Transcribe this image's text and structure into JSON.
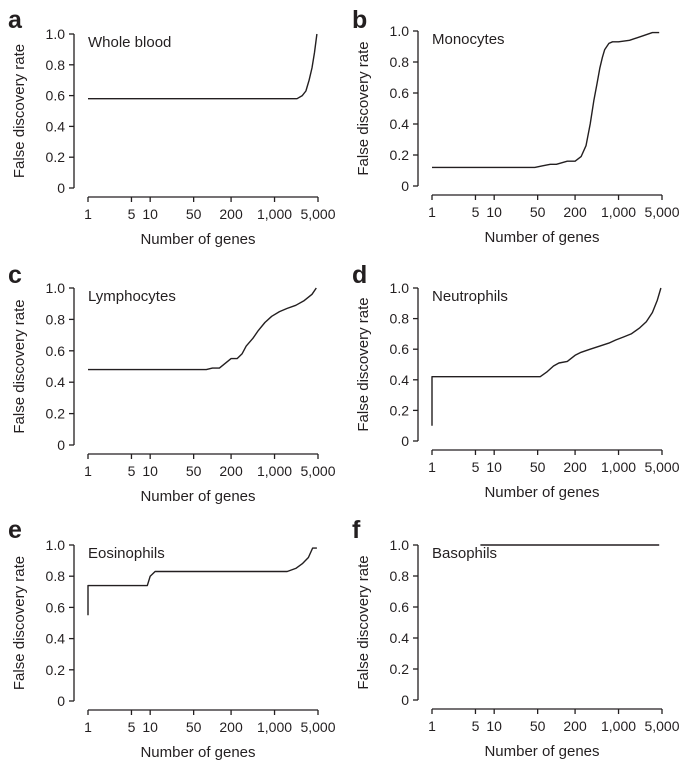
{
  "figure": {
    "background": "#ffffff",
    "ink": "#231f20"
  },
  "chart_data": [
    {
      "type": "line",
      "panel": "a",
      "title": "Whole blood",
      "xlabel": "Number of genes",
      "ylabel": "False discovery rate",
      "xscale": "log",
      "xlim": [
        1,
        5000
      ],
      "ylim": [
        0,
        1.0
      ],
      "xticks": [
        1,
        5,
        10,
        50,
        200,
        1000,
        5000
      ],
      "xticklabels": [
        "1",
        "5",
        "10",
        "50",
        "200",
        "1,000",
        "5,000"
      ],
      "yticks": [
        0,
        0.2,
        0.4,
        0.6,
        0.8,
        1.0
      ],
      "yticklabels": [
        "0",
        "0.2",
        "0.4",
        "0.6",
        "0.8",
        "1.0"
      ],
      "series": [
        {
          "x": [
            1,
            100,
            1000,
            2300,
            2800,
            3200,
            3600,
            4000,
            4400,
            4800
          ],
          "y": [
            0.58,
            0.58,
            0.58,
            0.58,
            0.6,
            0.63,
            0.7,
            0.78,
            0.88,
            1.0
          ]
        }
      ]
    },
    {
      "type": "line",
      "panel": "b",
      "title": "Monocytes",
      "xlabel": "Number of genes",
      "ylabel": "False discovery rate",
      "xscale": "log",
      "xlim": [
        1,
        5000
      ],
      "ylim": [
        0,
        1.0
      ],
      "xticks": [
        1,
        5,
        10,
        50,
        200,
        1000,
        5000
      ],
      "xticklabels": [
        "1",
        "5",
        "10",
        "50",
        "200",
        "1,000",
        "5,000"
      ],
      "yticks": [
        0,
        0.2,
        0.4,
        0.6,
        0.8,
        1.0
      ],
      "yticklabels": [
        "0",
        "0.2",
        "0.4",
        "0.6",
        "0.8",
        "1.0"
      ],
      "series": [
        {
          "x": [
            1,
            45,
            60,
            80,
            100,
            150,
            200,
            250,
            300,
            350,
            400,
            450,
            500,
            550,
            600,
            700,
            800,
            1000,
            1500,
            2500,
            3500,
            4500
          ],
          "y": [
            0.12,
            0.12,
            0.13,
            0.14,
            0.14,
            0.16,
            0.16,
            0.19,
            0.26,
            0.4,
            0.55,
            0.66,
            0.76,
            0.83,
            0.88,
            0.92,
            0.93,
            0.93,
            0.94,
            0.97,
            0.99,
            0.99
          ]
        }
      ]
    },
    {
      "type": "line",
      "panel": "c",
      "title": "Lymphocytes",
      "xlabel": "Number of genes",
      "ylabel": "False discovery rate",
      "xscale": "log",
      "xlim": [
        1,
        5000
      ],
      "ylim": [
        0,
        1.0
      ],
      "xticks": [
        1,
        5,
        10,
        50,
        200,
        1000,
        5000
      ],
      "xticklabels": [
        "1",
        "5",
        "10",
        "50",
        "200",
        "1,000",
        "5,000"
      ],
      "yticks": [
        0,
        0.2,
        0.4,
        0.6,
        0.8,
        1.0
      ],
      "yticklabels": [
        "0",
        "0.2",
        "0.4",
        "0.6",
        "0.8",
        "1.0"
      ],
      "series": [
        {
          "x": [
            1,
            80,
            100,
            130,
            160,
            200,
            250,
            300,
            350,
            450,
            550,
            700,
            900,
            1200,
            1600,
            2200,
            3000,
            4000,
            4700
          ],
          "y": [
            0.48,
            0.48,
            0.49,
            0.49,
            0.52,
            0.55,
            0.55,
            0.58,
            0.63,
            0.68,
            0.73,
            0.78,
            0.82,
            0.85,
            0.87,
            0.89,
            0.92,
            0.96,
            1.0
          ]
        }
      ]
    },
    {
      "type": "line",
      "panel": "d",
      "title": "Neutrophils",
      "xlabel": "Number of genes",
      "ylabel": "False discovery rate",
      "xscale": "log",
      "xlim": [
        1,
        5000
      ],
      "ylim": [
        0,
        1.0
      ],
      "xticks": [
        1,
        5,
        10,
        50,
        200,
        1000,
        5000
      ],
      "xticklabels": [
        "1",
        "5",
        "10",
        "50",
        "200",
        "1,000",
        "5,000"
      ],
      "yticks": [
        0,
        0.2,
        0.4,
        0.6,
        0.8,
        1.0
      ],
      "yticklabels": [
        "0",
        "0.2",
        "0.4",
        "0.6",
        "0.8",
        "1.0"
      ],
      "series": [
        {
          "x": [
            1,
            1,
            55,
            70,
            90,
            110,
            150,
            200,
            250,
            350,
            500,
            700,
            900,
            1200,
            1600,
            2200,
            2800,
            3500,
            4200,
            4800
          ],
          "y": [
            0.1,
            0.42,
            0.42,
            0.45,
            0.49,
            0.51,
            0.52,
            0.56,
            0.58,
            0.6,
            0.62,
            0.64,
            0.66,
            0.68,
            0.7,
            0.74,
            0.78,
            0.84,
            0.92,
            1.0
          ]
        }
      ]
    },
    {
      "type": "line",
      "panel": "e",
      "title": "Eosinophils",
      "xlabel": "Number of genes",
      "ylabel": "False discovery rate",
      "xscale": "log",
      "xlim": [
        1,
        5000
      ],
      "ylim": [
        0,
        1.0
      ],
      "xticks": [
        1,
        5,
        10,
        50,
        200,
        1000,
        5000
      ],
      "xticklabels": [
        "1",
        "5",
        "10",
        "50",
        "200",
        "1,000",
        "5,000"
      ],
      "yticks": [
        0,
        0.2,
        0.4,
        0.6,
        0.8,
        1.0
      ],
      "yticklabels": [
        "0",
        "0.2",
        "0.4",
        "0.6",
        "0.8",
        "1.0"
      ],
      "series": [
        {
          "x": [
            1,
            1,
            9,
            10,
            12,
            15,
            100,
            1000,
            1600,
            2200,
            2800,
            3500,
            4100,
            4800
          ],
          "y": [
            0.55,
            0.74,
            0.74,
            0.8,
            0.83,
            0.83,
            0.83,
            0.83,
            0.83,
            0.85,
            0.88,
            0.92,
            0.98,
            0.98
          ]
        }
      ]
    },
    {
      "type": "line",
      "panel": "f",
      "title": "Basophils",
      "xlabel": "Number of genes",
      "ylabel": "False discovery rate",
      "xscale": "log",
      "xlim": [
        1,
        5000
      ],
      "ylim": [
        0,
        1.0
      ],
      "xticks": [
        1,
        5,
        10,
        50,
        200,
        1000,
        5000
      ],
      "xticklabels": [
        "1",
        "5",
        "10",
        "50",
        "200",
        "1,000",
        "5,000"
      ],
      "yticks": [
        0,
        0.2,
        0.4,
        0.6,
        0.8,
        1.0
      ],
      "yticklabels": [
        "0",
        "0.2",
        "0.4",
        "0.6",
        "0.8",
        "1.0"
      ],
      "series": [
        {
          "x": [
            6,
            4500
          ],
          "y": [
            1.0,
            1.0
          ]
        }
      ]
    }
  ]
}
